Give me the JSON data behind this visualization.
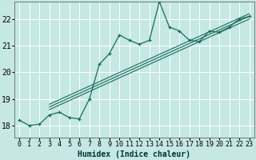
{
  "title": "",
  "xlabel": "Humidex (Indice chaleur)",
  "ylabel": "",
  "background_color": "#c5e8e5",
  "grid_color": "#ffffff",
  "line_color": "#1a6b5a",
  "xlim": [
    -0.5,
    23.5
  ],
  "ylim": [
    17.55,
    22.65
  ],
  "yticks": [
    18,
    19,
    20,
    21,
    22
  ],
  "xticks": [
    0,
    1,
    2,
    3,
    4,
    5,
    6,
    7,
    8,
    9,
    10,
    11,
    12,
    13,
    14,
    15,
    16,
    17,
    18,
    19,
    20,
    21,
    22,
    23
  ],
  "series1_x": [
    0,
    1,
    2,
    3,
    4,
    5,
    6,
    7,
    8,
    9,
    10,
    11,
    12,
    13,
    14,
    15,
    16,
    17,
    18,
    19,
    20,
    21,
    22,
    23
  ],
  "series1_y": [
    18.2,
    18.0,
    18.05,
    18.4,
    18.5,
    18.3,
    18.25,
    19.0,
    20.3,
    20.7,
    21.4,
    21.2,
    21.05,
    21.2,
    22.65,
    21.7,
    21.55,
    21.2,
    21.15,
    21.55,
    21.5,
    21.7,
    22.0,
    22.1
  ],
  "line2_x": [
    3,
    23
  ],
  "line2_y": [
    18.6,
    22.0
  ],
  "line3_x": [
    3,
    23
  ],
  "line3_y": [
    18.7,
    22.1
  ],
  "line4_x": [
    3,
    23
  ],
  "line4_y": [
    18.8,
    22.2
  ],
  "xlabel_fontsize": 7,
  "tick_fontsize": 6
}
